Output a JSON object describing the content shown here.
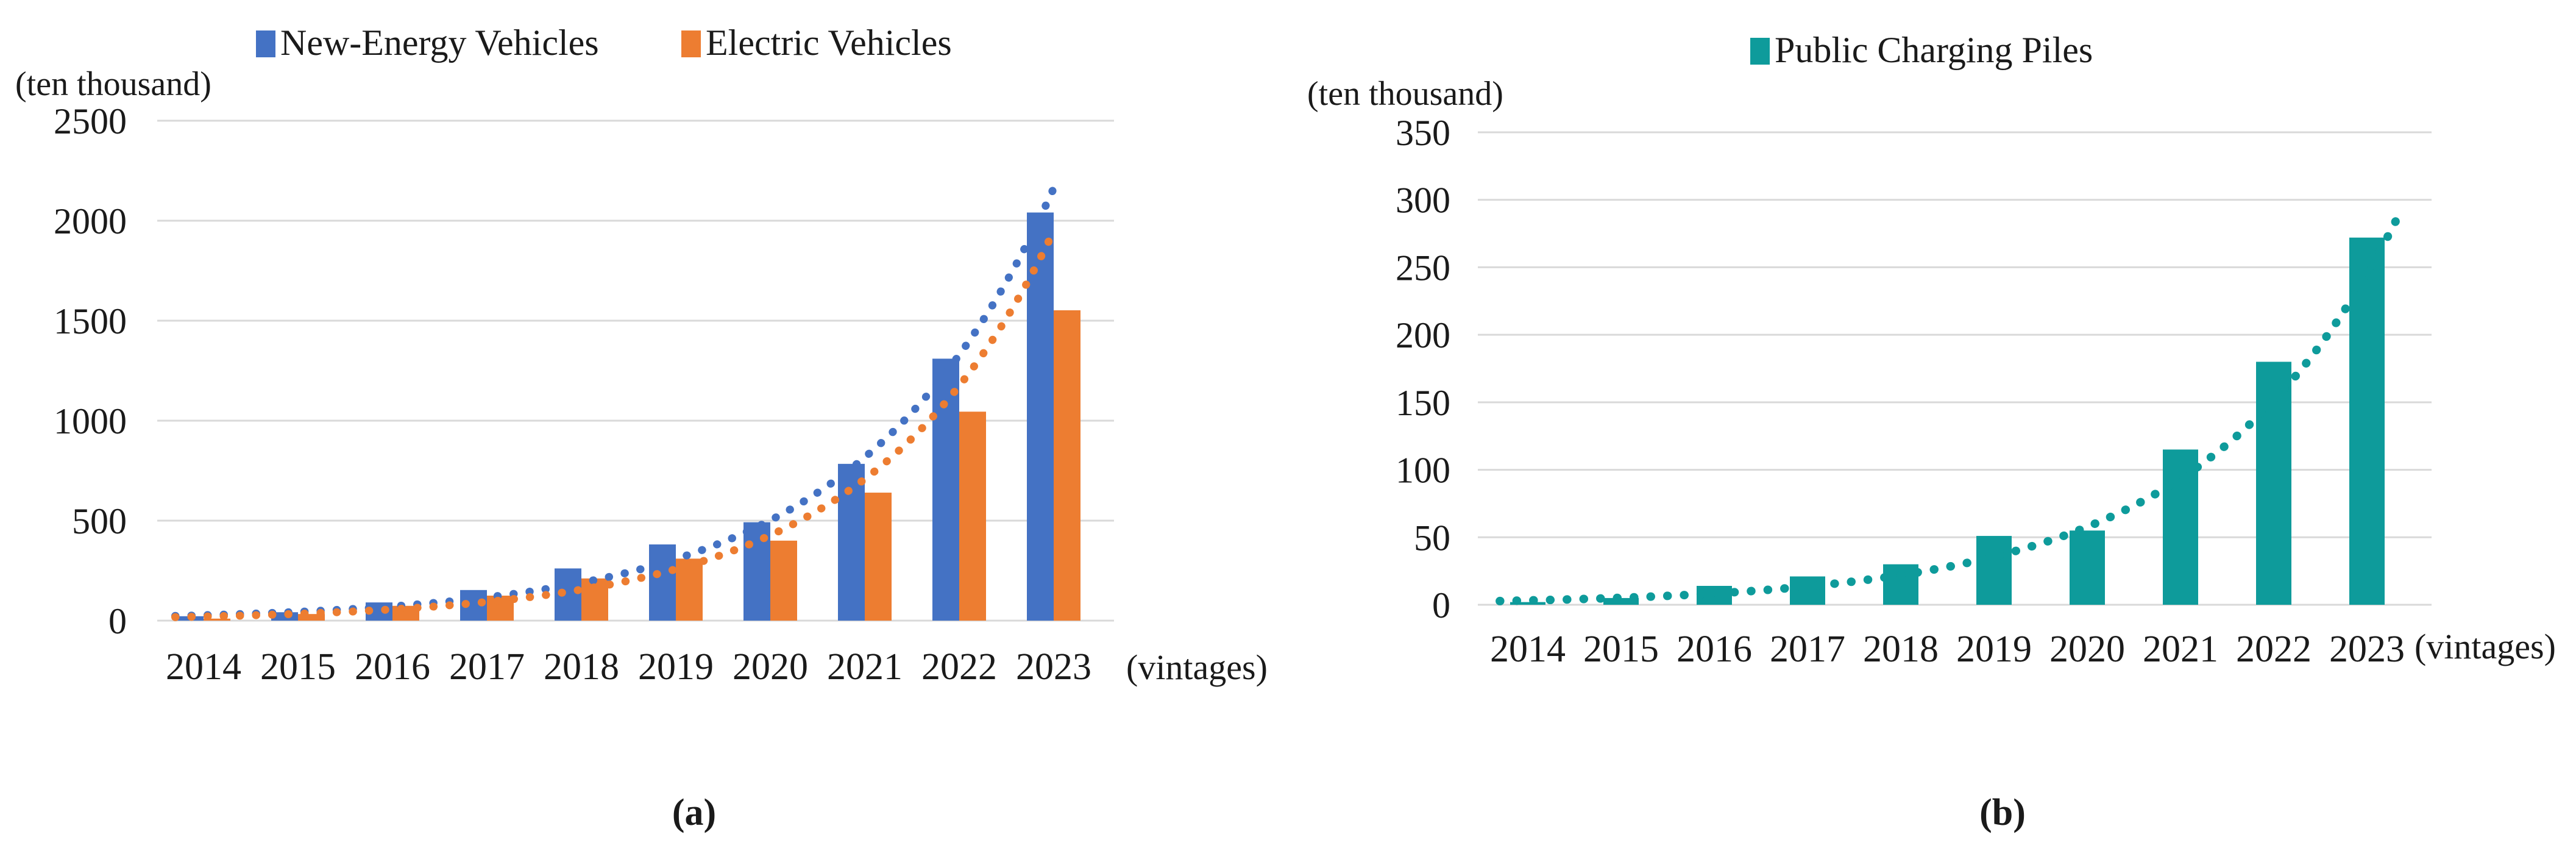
{
  "figure": {
    "captions": [
      "(a)",
      "(b)"
    ]
  },
  "chart_data": [
    {
      "panel": "a",
      "type": "bar",
      "title": "",
      "y_unit_label": "(ten thousand)",
      "x_unit_label": "(vintages)",
      "categories": [
        "2014",
        "2015",
        "2016",
        "2017",
        "2018",
        "2019",
        "2020",
        "2021",
        "2022",
        "2023"
      ],
      "yticks": [
        0,
        500,
        1000,
        1500,
        2000,
        2500
      ],
      "ylim": [
        0,
        2500
      ],
      "grid": true,
      "gridline_color": "#D9D9D9",
      "legend_position": "top",
      "series": [
        {
          "name": "New-Energy Vehicles",
          "color": "#4472C4",
          "values": [
            22,
            42,
            91,
            153,
            261,
            381,
            492,
            784,
            1310,
            2041
          ],
          "trendline": "exponential-dotted"
        },
        {
          "name": "Electric Vehicles",
          "color": "#ED7D31",
          "values": [
            10,
            33,
            74,
            125,
            211,
            310,
            400,
            640,
            1045,
            1552
          ],
          "trendline": "exponential-dotted"
        }
      ]
    },
    {
      "panel": "b",
      "type": "bar",
      "title": "",
      "y_unit_label": "(ten thousand)",
      "x_unit_label": "(vintages)",
      "categories": [
        "2014",
        "2015",
        "2016",
        "2017",
        "2018",
        "2019",
        "2020",
        "2021",
        "2022",
        "2023"
      ],
      "yticks": [
        0,
        50,
        100,
        150,
        200,
        250,
        300,
        350
      ],
      "ylim": [
        0,
        350
      ],
      "grid": true,
      "gridline_color": "#D9D9D9",
      "legend_position": "top",
      "series": [
        {
          "name": "Public Charging Piles",
          "color": "#0E9B9B",
          "values": [
            2,
            5,
            14,
            21,
            30,
            51,
            55,
            115,
            180,
            272
          ],
          "trendline": "exponential-dotted"
        }
      ]
    }
  ]
}
